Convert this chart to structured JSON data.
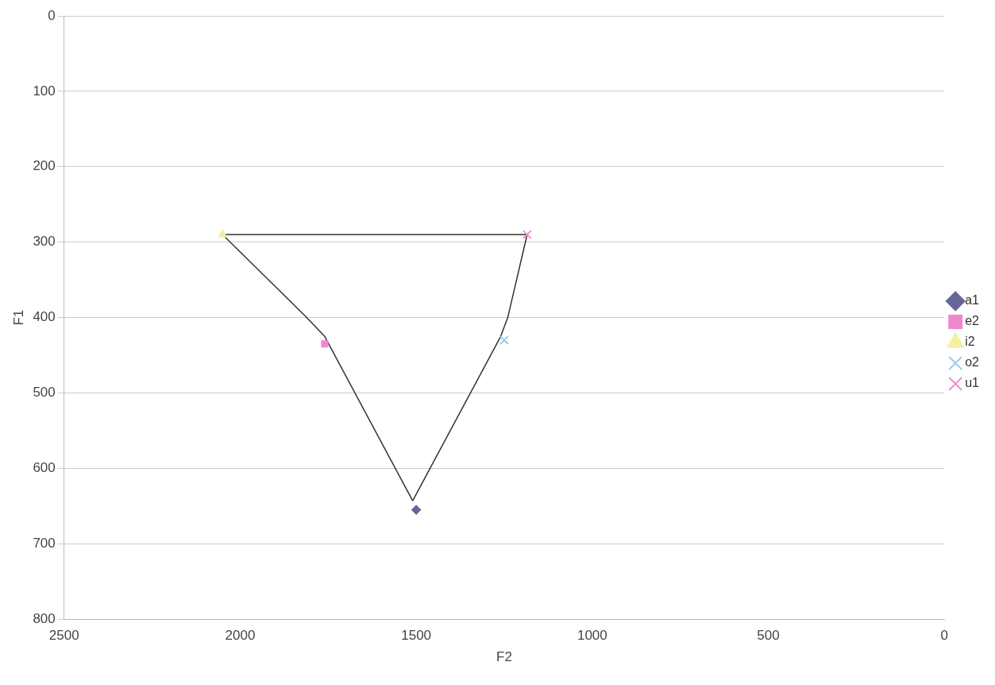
{
  "chart_data": {
    "type": "scatter",
    "xlabel": "F2",
    "ylabel": "F1",
    "xlim": [
      2500,
      0
    ],
    "ylim": [
      800,
      0
    ],
    "xticks": [
      2500,
      2000,
      1500,
      1000,
      500,
      0
    ],
    "yticks": [
      0,
      100,
      200,
      300,
      400,
      500,
      600,
      700,
      800
    ],
    "grid": "y",
    "legend": "right",
    "line_style": "solid",
    "series": [
      {
        "name": "a1",
        "color": "#666699",
        "marker": "diamond",
        "x": [
          1500
        ],
        "values": [
          655
        ]
      },
      {
        "name": "e2",
        "color": "#ee88cc",
        "marker": "square",
        "x": [
          1760
        ],
        "values": [
          435
        ]
      },
      {
        "name": "i2",
        "color": "#f4f0a0",
        "marker": "triangle",
        "x": [
          2050
        ],
        "values": [
          290
        ]
      },
      {
        "name": "o2",
        "color": "#99ccee",
        "marker": "cross",
        "x": [
          1250
        ],
        "values": [
          430
        ]
      },
      {
        "name": "u1",
        "color": "#f090d0",
        "marker": "cross",
        "x": [
          1185
        ],
        "values": [
          290
        ]
      },
      {
        "type": "line",
        "color": "#333333",
        "marker": "none",
        "x": [
          1185,
          2050
        ],
        "values": [
          290,
          290
        ]
      },
      {
        "type": "line",
        "color": "#333333",
        "marker": "none",
        "x": [
          1185,
          1240,
          1260,
          1510
        ],
        "values": [
          290,
          400,
          425,
          643
        ]
      },
      {
        "type": "line",
        "color": "#333333",
        "marker": "none",
        "x": [
          1510,
          1760,
          1815,
          2050
        ],
        "values": [
          643,
          425,
          398,
          290
        ]
      }
    ]
  }
}
